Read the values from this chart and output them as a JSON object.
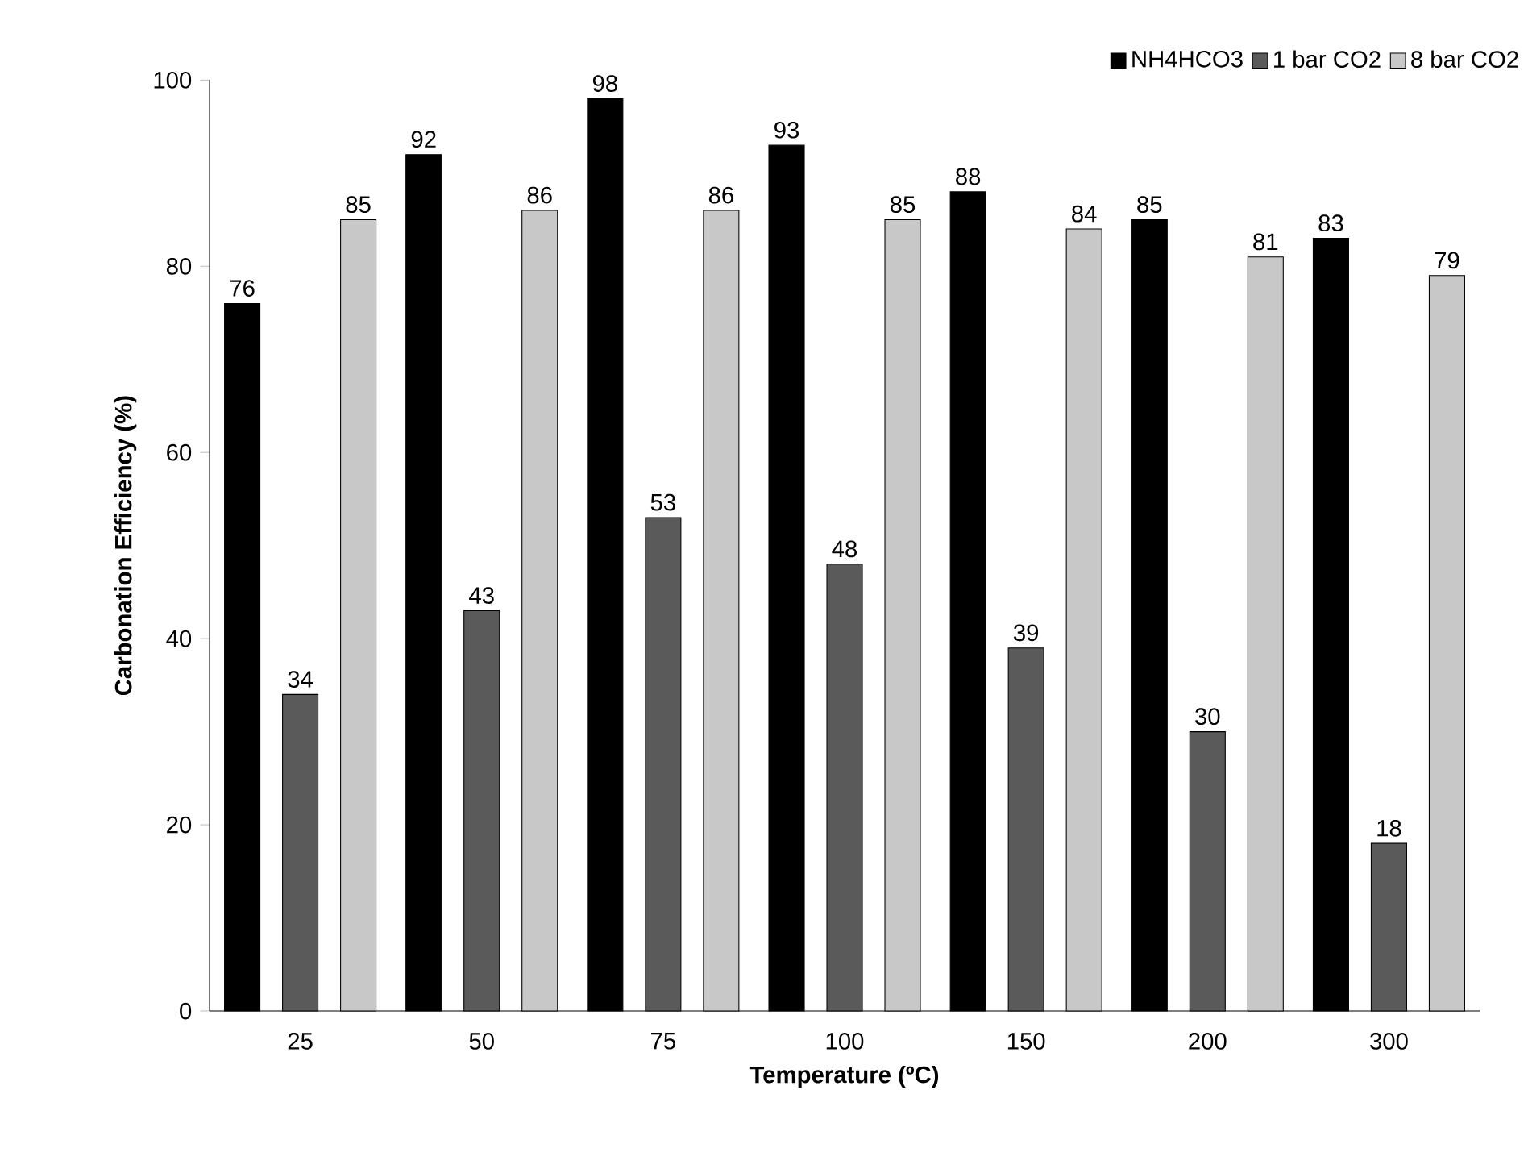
{
  "chart_data": {
    "type": "bar",
    "xlabel": "Temperature (ºC)",
    "ylabel": "Carbonation Efficiency (%)",
    "categories": [
      "25",
      "50",
      "75",
      "100",
      "150",
      "200",
      "300"
    ],
    "series": [
      {
        "name": "NH4HCO3",
        "color": "#000000",
        "values": [
          76,
          92,
          98,
          93,
          88,
          85,
          83
        ]
      },
      {
        "name": "1 bar CO2",
        "color": "#5a5a5a",
        "values": [
          34,
          43,
          53,
          48,
          39,
          30,
          18
        ]
      },
      {
        "name": "8 bar CO2",
        "color": "#c8c8c8",
        "values": [
          85,
          86,
          86,
          85,
          84,
          81,
          79
        ]
      }
    ],
    "ylim": [
      0,
      100
    ],
    "yticks": [
      0,
      20,
      40,
      60,
      80,
      100
    ],
    "data_labels": true,
    "legend": "top right",
    "grid": false
  }
}
